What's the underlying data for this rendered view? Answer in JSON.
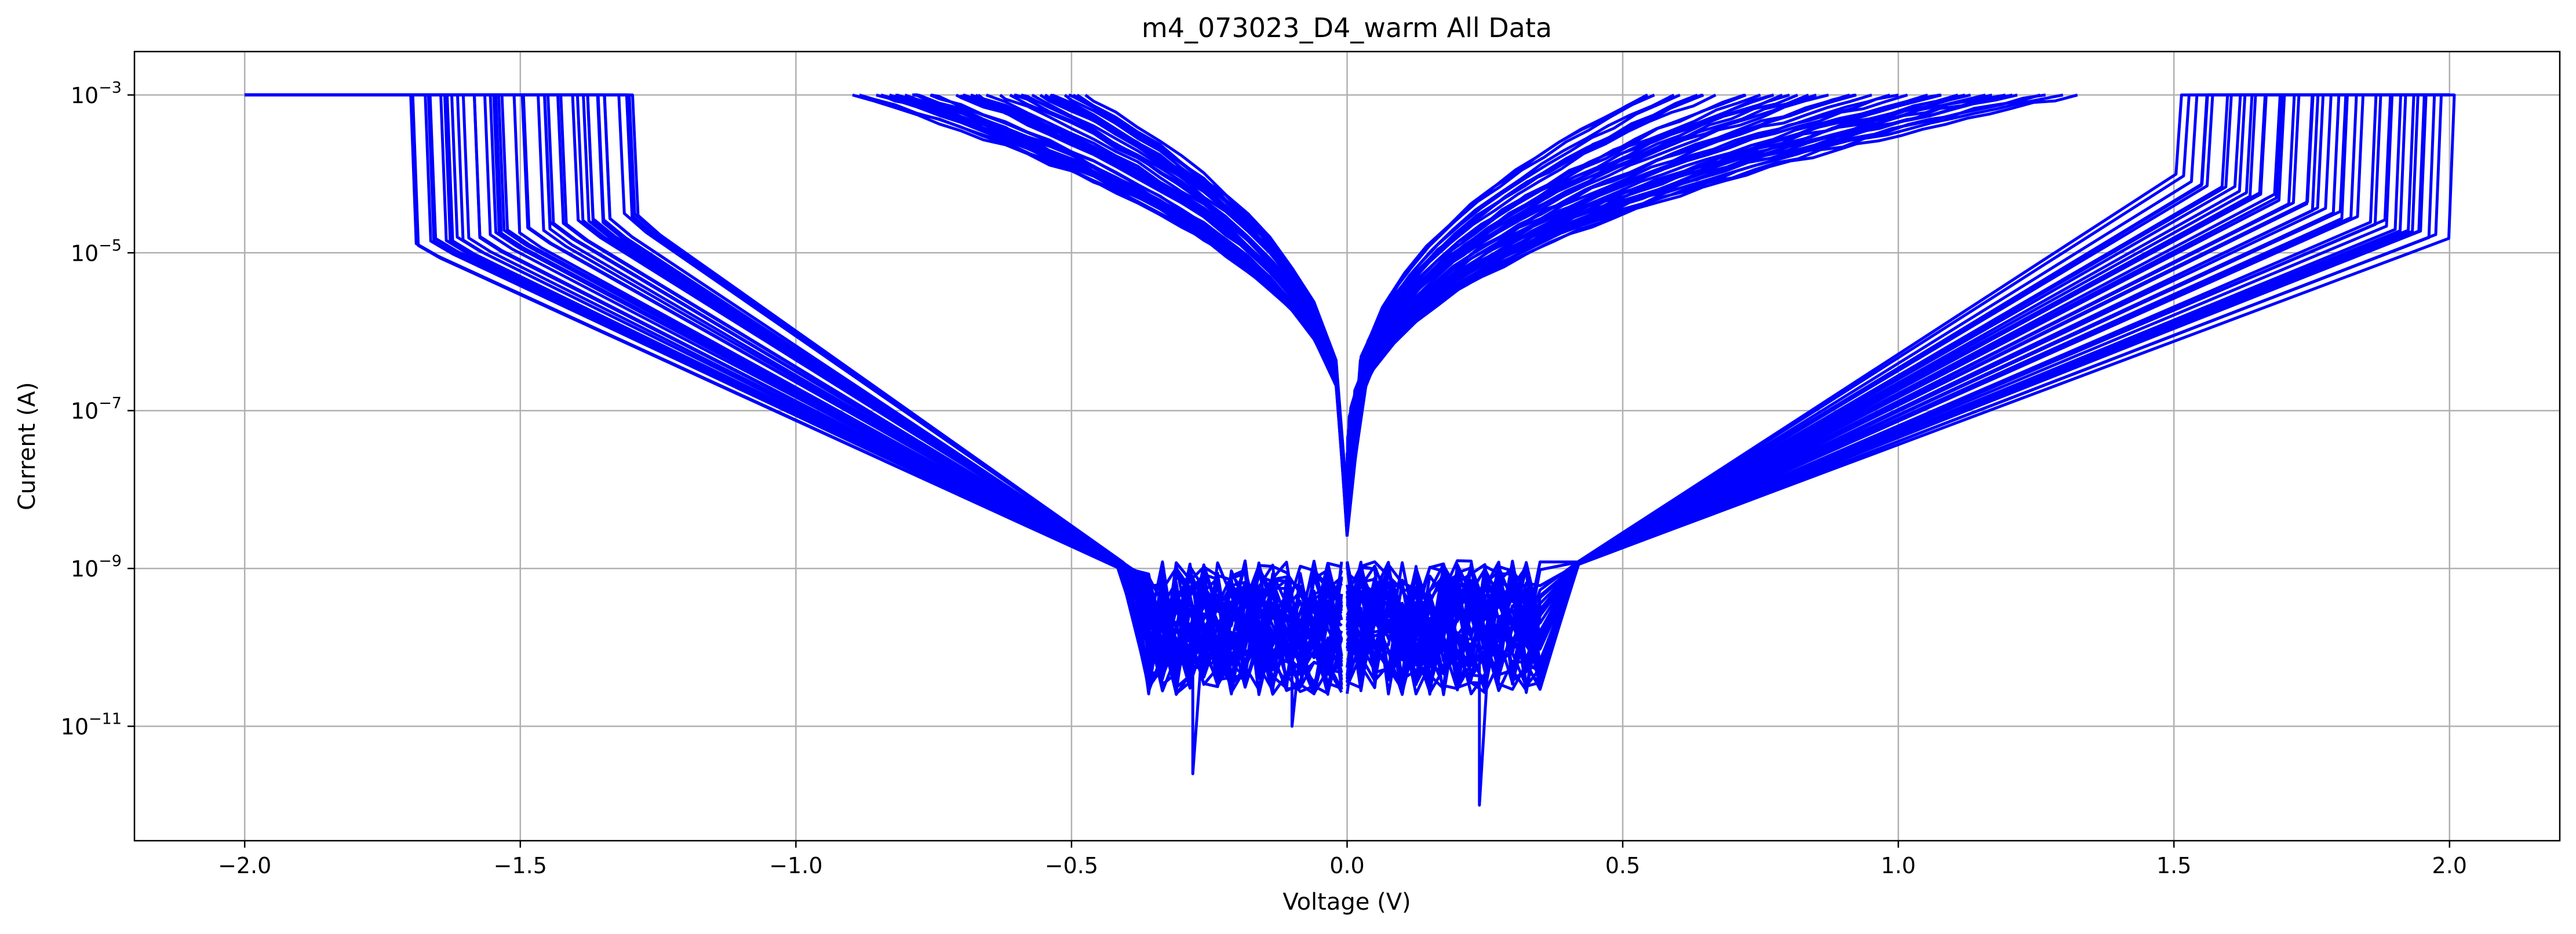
{
  "chart_data": {
    "type": "line",
    "title": "m4_073023_D4_warm All Data",
    "xlabel": "Voltage (V)",
    "ylabel": "Current (A)",
    "xlim": [
      -2.2,
      2.2
    ],
    "ylim_log10": [
      -12.45,
      -2.45
    ],
    "yscale": "log",
    "grid": true,
    "line_color": "#0000ff",
    "x_ticks": [
      {
        "value": -2.0,
        "label": "−2.0"
      },
      {
        "value": -1.5,
        "label": "−1.5"
      },
      {
        "value": -1.0,
        "label": "−1.0"
      },
      {
        "value": -0.5,
        "label": "−0.5"
      },
      {
        "value": 0.0,
        "label": "0.0"
      },
      {
        "value": 0.5,
        "label": "0.5"
      },
      {
        "value": 1.0,
        "label": "1.0"
      },
      {
        "value": 1.5,
        "label": "1.5"
      },
      {
        "value": 2.0,
        "label": "2.0"
      }
    ],
    "y_ticks": [
      {
        "value": 0.001,
        "base": "10",
        "exp": "−3"
      },
      {
        "value": 1e-05,
        "base": "10",
        "exp": "−5"
      },
      {
        "value": 1e-07,
        "base": "10",
        "exp": "−7"
      },
      {
        "value": 1e-09,
        "base": "10",
        "exp": "−9"
      },
      {
        "value": 1e-11,
        "base": "10",
        "exp": "−11"
      }
    ],
    "series_envelope": {
      "compliance_current": 0.001,
      "sweep_range_v": [
        -2.0,
        2.0
      ],
      "reset_voltage_range_v": [
        -1.72,
        -0.5
      ],
      "set_voltage_range_v": [
        0.5,
        1.98
      ],
      "noise_floor_a": [
        1e-11,
        1e-09
      ],
      "min_current_points": [
        {
          "x": -0.28,
          "y": 2.5e-12
        },
        {
          "x": 0.24,
          "y": 1e-12
        },
        {
          "x": -0.1,
          "y": 1e-11
        }
      ]
    }
  }
}
